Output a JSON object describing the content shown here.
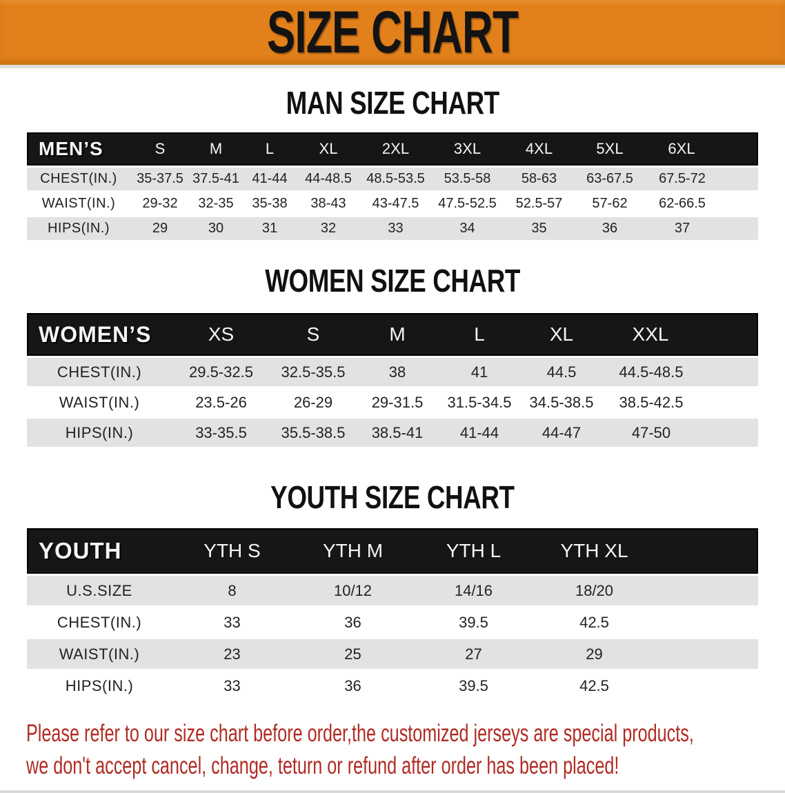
{
  "banner": {
    "title": "SIZE CHART"
  },
  "theme": {
    "banner_orange": "#E2811B",
    "header_black": "#161616",
    "row_gray": "#E2E2E2",
    "disclaimer_red": "#B02B24"
  },
  "sections": [
    {
      "heading": "MAN SIZE CHART",
      "table": {
        "header_label": "MEN’S",
        "columns": [
          "S",
          "M",
          "L",
          "XL",
          "2XL",
          "3XL",
          "4XL",
          "5XL",
          "6XL"
        ],
        "rows": [
          {
            "label": "CHEST(IN.)",
            "values": [
              "35-37.5",
              "37.5-41",
              "41-44",
              "44-48.5",
              "48.5-53.5",
              "53.5-58",
              "58-63",
              "63-67.5",
              "67.5-72"
            ]
          },
          {
            "label": "WAIST(IN.)",
            "values": [
              "29-32",
              "32-35",
              "35-38",
              "38-43",
              "43-47.5",
              "47.5-52.5",
              "52.5-57",
              "57-62",
              "62-66.5"
            ]
          },
          {
            "label": "HIPS(IN.)",
            "values": [
              "29",
              "30",
              "31",
              "32",
              "33",
              "34",
              "35",
              "36",
              "37"
            ]
          }
        ]
      }
    },
    {
      "heading": "WOMEN SIZE CHART",
      "table": {
        "header_label": "WOMEN’S",
        "columns": [
          "XS",
          "S",
          "M",
          "L",
          "XL",
          "XXL"
        ],
        "rows": [
          {
            "label": "CHEST(IN.)",
            "values": [
              "29.5-32.5",
              "32.5-35.5",
              "38",
              "41",
              "44.5",
              "44.5-48.5"
            ]
          },
          {
            "label": "WAIST(IN.)",
            "values": [
              "23.5-26",
              "26-29",
              "29-31.5",
              "31.5-34.5",
              "34.5-38.5",
              "38.5-42.5"
            ]
          },
          {
            "label": "HIPS(IN.)",
            "values": [
              "33-35.5",
              "35.5-38.5",
              "38.5-41",
              "41-44",
              "44-47",
              "47-50"
            ]
          }
        ]
      }
    },
    {
      "heading": "YOUTH SIZE CHART",
      "table": {
        "header_label": "YOUTH",
        "columns": [
          "YTH S",
          "YTH M",
          "YTH L",
          "YTH XL"
        ],
        "spacer": true,
        "rows": [
          {
            "label": "U.S.SIZE",
            "values": [
              "8",
              "10/12",
              "14/16",
              "18/20"
            ]
          },
          {
            "label": "CHEST(IN.)",
            "values": [
              "33",
              "36",
              "39.5",
              "42.5"
            ]
          },
          {
            "label": "WAIST(IN.)",
            "values": [
              "23",
              "25",
              "27",
              "29"
            ]
          },
          {
            "label": "HIPS(IN.)",
            "values": [
              "33",
              "36",
              "39.5",
              "42.5"
            ]
          }
        ]
      }
    }
  ],
  "disclaimer": {
    "line1": "Please refer to our size chart before order,the customized jerseys are special products,",
    "line2": "we don't accept cancel, change, teturn or refund after order has been placed!"
  }
}
